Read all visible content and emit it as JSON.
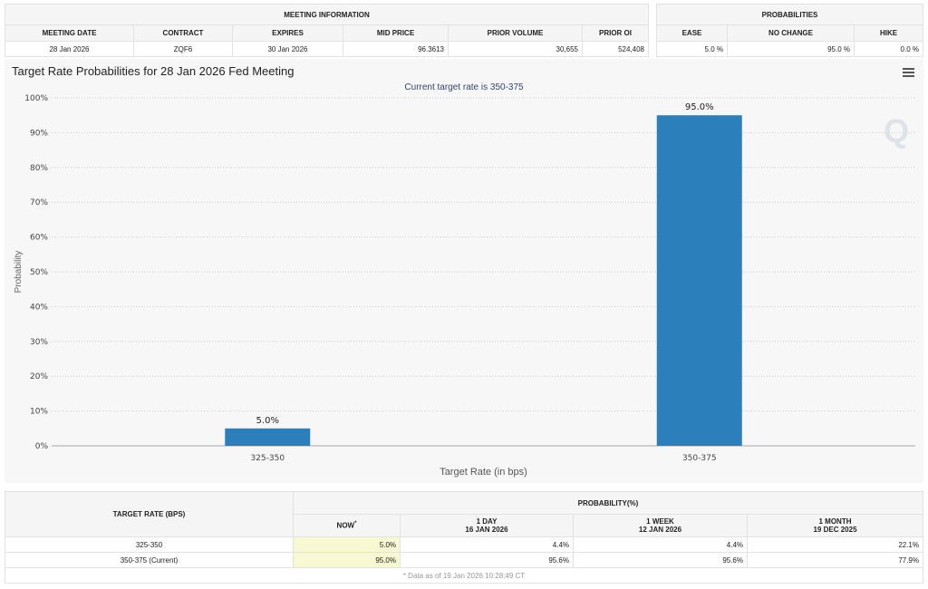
{
  "meeting_info": {
    "header": "MEETING INFORMATION",
    "columns": [
      "MEETING DATE",
      "CONTRACT",
      "EXPIRES",
      "MID PRICE",
      "PRIOR VOLUME",
      "PRIOR OI"
    ],
    "row": [
      "28 Jan 2026",
      "ZQF6",
      "30 Jan 2026",
      "96.3613",
      "30,655",
      "524,408"
    ]
  },
  "probabilities": {
    "header": "PROBABILITIES",
    "columns": [
      "EASE",
      "NO CHANGE",
      "HIKE"
    ],
    "row": [
      "5.0 %",
      "95.0 %",
      "0.0 %"
    ]
  },
  "chart": {
    "title": "Target Rate Probabilities for 28 Jan 2026 Fed Meeting",
    "subtitle": "Current target rate is 350-375",
    "menu_icon": "hamburger-menu-icon"
  },
  "chart_data": {
    "type": "bar",
    "categories": [
      "325-350",
      "350-375"
    ],
    "values": [
      5.0,
      95.0
    ],
    "data_labels": [
      "5.0%",
      "95.0%"
    ],
    "xlabel": "Target Rate (in bps)",
    "ylabel": "Probability",
    "ylim": [
      0,
      100
    ],
    "yticks": [
      "0%",
      "10%",
      "20%",
      "30%",
      "40%",
      "50%",
      "60%",
      "70%",
      "80%",
      "90%",
      "100%"
    ],
    "grid": true,
    "bar_color": "#2b7fba"
  },
  "prob_table": {
    "target_header": "TARGET RATE (BPS)",
    "prob_header": "PROBABILITY(%)",
    "columns": [
      {
        "l1": "NOW",
        "l2": "",
        "sup": "*"
      },
      {
        "l1": "1 DAY",
        "l2": "16 JAN 2026"
      },
      {
        "l1": "1 WEEK",
        "l2": "12 JAN 2026"
      },
      {
        "l1": "1 MONTH",
        "l2": "19 DEC 2025"
      }
    ],
    "rows": [
      {
        "rate": "325-350",
        "vals": [
          "5.0%",
          "4.4%",
          "4.4%",
          "22.1%"
        ]
      },
      {
        "rate": "350-375 (Current)",
        "vals": [
          "95.0%",
          "95.6%",
          "95.6%",
          "77.9%"
        ]
      }
    ],
    "footnote": "* Data as of 19 Jan 2026 10:28:49 CT"
  }
}
